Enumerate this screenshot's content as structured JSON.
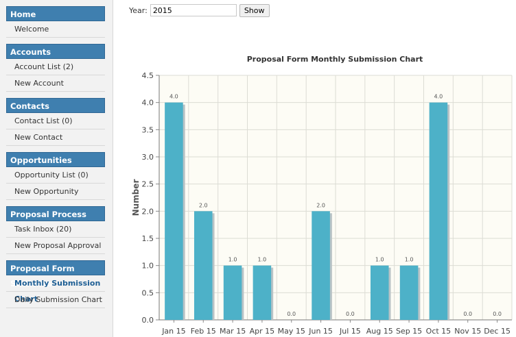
{
  "sidebar": {
    "sections": [
      {
        "title": "Home",
        "items": [
          {
            "label": "Welcome"
          }
        ]
      },
      {
        "title": "Accounts",
        "items": [
          {
            "label": "Account List (2)"
          },
          {
            "label": "New Account"
          }
        ]
      },
      {
        "title": "Contacts",
        "items": [
          {
            "label": "Contact List (0)"
          },
          {
            "label": "New Contact"
          }
        ]
      },
      {
        "title": "Opportunities",
        "items": [
          {
            "label": "Opportunity List (0)"
          },
          {
            "label": "New Opportunity"
          }
        ]
      },
      {
        "title": "Proposal Process",
        "items": [
          {
            "label": "Task Inbox (20)"
          },
          {
            "label": "New Proposal Approval"
          }
        ]
      },
      {
        "title": "Proposal Form Statistics",
        "items": [
          {
            "label": "Monthly Submission Chart",
            "active": true
          },
          {
            "label": "Daily Submission Chart"
          }
        ]
      }
    ]
  },
  "filter": {
    "year_label": "Year:",
    "year_value": "2015",
    "show_label": "Show"
  },
  "colors": {
    "bar": "#4db1c8",
    "plot_bg": "#fdfcf5",
    "sidebar_head": "#3f7faf"
  },
  "chart_data": {
    "type": "bar",
    "title": "Proposal Form Monthly Submission Chart",
    "xlabel": "",
    "ylabel": "Number",
    "categories": [
      "Jan 15",
      "Feb 15",
      "Mar 15",
      "Apr 15",
      "May 15",
      "Jun 15",
      "Jul 15",
      "Aug 15",
      "Sep 15",
      "Oct 15",
      "Nov 15",
      "Dec 15"
    ],
    "values": [
      4.0,
      2.0,
      1.0,
      1.0,
      0.0,
      2.0,
      0.0,
      1.0,
      1.0,
      4.0,
      0.0,
      0.0
    ],
    "data_labels": [
      "4.0",
      "2.0",
      "1.0",
      "1.0",
      "0.0",
      "2.0",
      "0.0",
      "1.0",
      "1.0",
      "4.0",
      "0.0",
      "0.0"
    ],
    "yticks": [
      "0.0",
      "0.5",
      "1.0",
      "1.5",
      "2.0",
      "2.5",
      "3.0",
      "3.5",
      "4.0",
      "4.5"
    ],
    "ylim": [
      0,
      4.5
    ],
    "grid": true
  }
}
